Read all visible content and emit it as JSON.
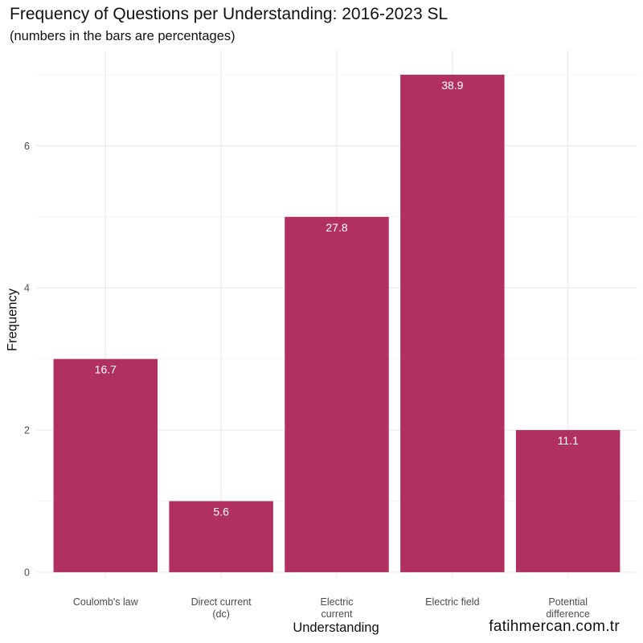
{
  "chart_data": {
    "type": "bar",
    "title": "Frequency of Questions per Understanding: 2016-2023 SL",
    "subtitle": "(numbers in the bars are percentages)",
    "xlabel": "Understanding",
    "ylabel": "Frequency",
    "caption": "fatihmercan.com.tr",
    "categories": [
      [
        "Coulomb's law"
      ],
      [
        "Direct current",
        "(dc)"
      ],
      [
        "Electric",
        "current"
      ],
      [
        "Electric field"
      ],
      [
        "Potential",
        "difference"
      ]
    ],
    "values": [
      3,
      1,
      5,
      7,
      2
    ],
    "bar_labels": [
      "16.7",
      "5.6",
      "27.8",
      "38.9",
      "11.1"
    ],
    "yticks": [
      0,
      2,
      4,
      6
    ],
    "ylim": [
      -0.08,
      7.35
    ],
    "grid": true,
    "colors": {
      "bar": "#B03060",
      "grid_major": "#ebebeb",
      "grid_minor": "#f4f4f4"
    }
  }
}
